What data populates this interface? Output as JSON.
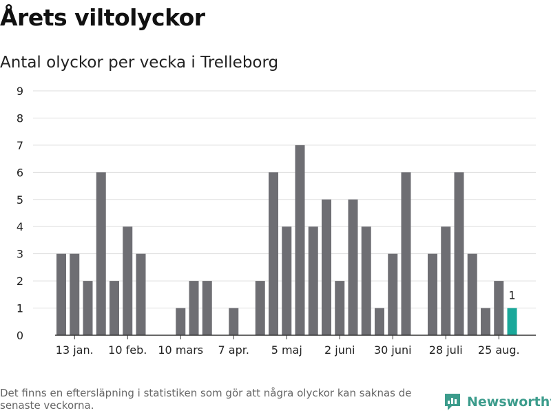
{
  "header": {
    "title": "Årets viltolyckor",
    "subtitle": "Antal olyckor per vecka i Trelleborg"
  },
  "footer": {
    "note": "Det finns en eftersläpning i statistiken som gör att några olyckor kan saknas de senaste veckorna.",
    "brand": "Newsworthy"
  },
  "colors": {
    "bar": "#6e6e73",
    "highlight": "#1aa89a",
    "grid": "#dddddd",
    "axis": "#333333",
    "brand": "#3c9c8c"
  },
  "icons": {
    "logo": "chat-bubble-bar-chart-icon"
  },
  "chart_data": {
    "type": "bar",
    "title": "Antal olyckor per vecka i Trelleborg",
    "xlabel": "",
    "ylabel": "",
    "ylim": [
      0,
      9
    ],
    "yticks": [
      0,
      1,
      2,
      3,
      4,
      5,
      6,
      7,
      8,
      9
    ],
    "grid": true,
    "legend": "none",
    "weeks": [
      2,
      3,
      4,
      5,
      6,
      7,
      8,
      9,
      10,
      11,
      12,
      13,
      14,
      15,
      16,
      17,
      18,
      19,
      20,
      21,
      22,
      23,
      24,
      25,
      26,
      27,
      28,
      29,
      30,
      31,
      32,
      33,
      34,
      35
    ],
    "values": [
      3,
      3,
      2,
      6,
      2,
      4,
      3,
      0,
      0,
      1,
      2,
      2,
      0,
      1,
      0,
      2,
      6,
      4,
      7,
      4,
      5,
      2,
      5,
      4,
      1,
      3,
      6,
      0,
      3,
      4,
      6,
      3,
      1,
      2
    ],
    "x_tick_labels": [
      {
        "week": 3,
        "label": "13 jan."
      },
      {
        "week": 7,
        "label": "10 feb."
      },
      {
        "week": 11,
        "label": "10 mars"
      },
      {
        "week": 15,
        "label": "7 apr."
      },
      {
        "week": 19,
        "label": "5 maj"
      },
      {
        "week": 23,
        "label": "2 juni"
      },
      {
        "week": 27,
        "label": "30 juni"
      },
      {
        "week": 31,
        "label": "28 juli"
      },
      {
        "week": 35,
        "label": "25 aug."
      }
    ],
    "highlight": {
      "week": 36,
      "value": 1,
      "label": "1"
    }
  }
}
